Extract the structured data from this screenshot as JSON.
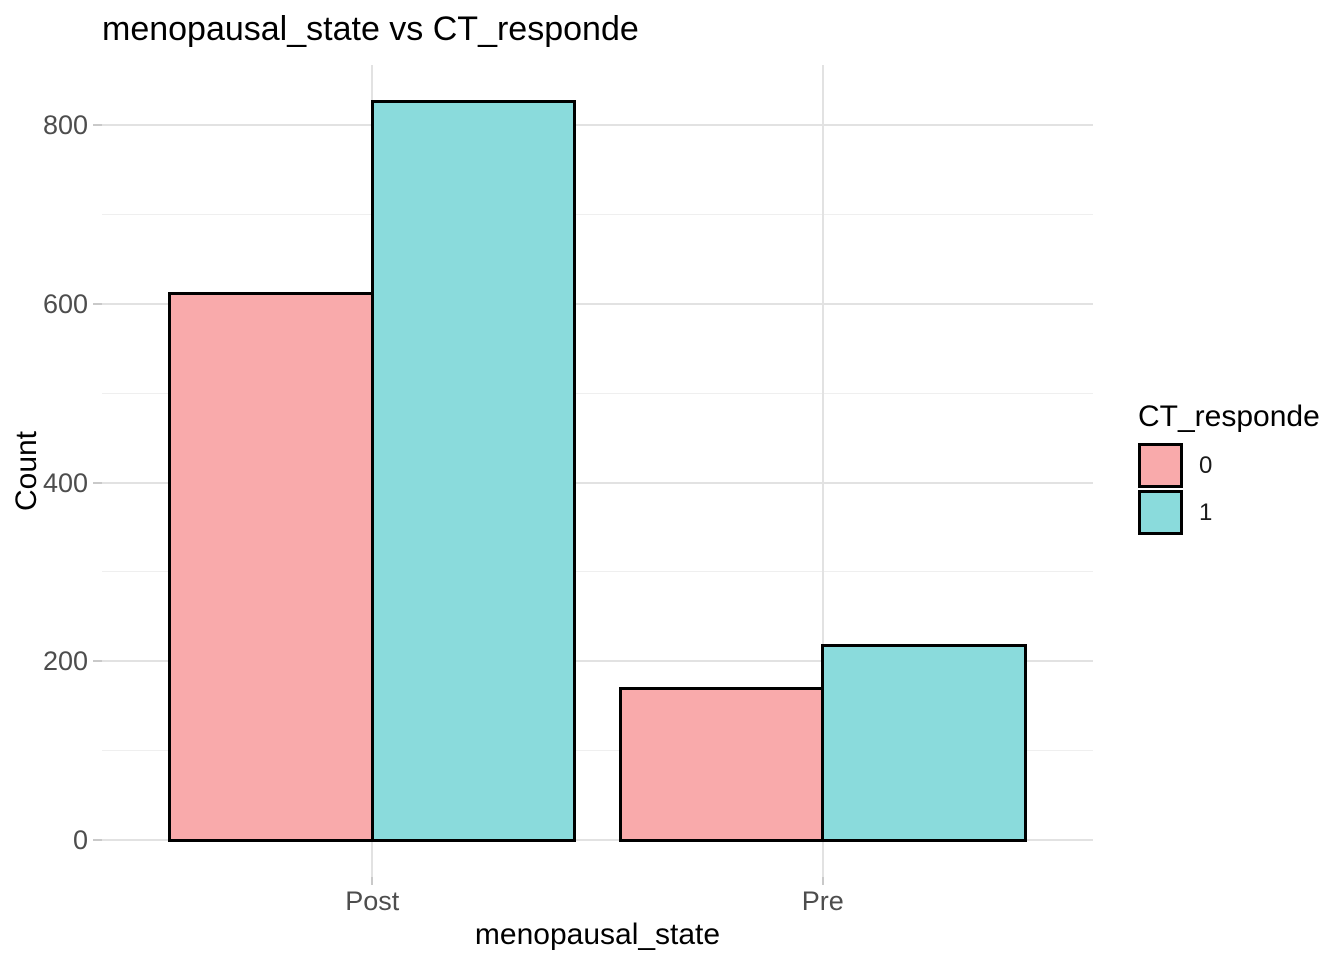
{
  "chart_data": {
    "type": "bar",
    "title": "menopausal_state vs CT_responde",
    "xlabel": "menopausal_state",
    "ylabel": "Count",
    "categories": [
      "Post",
      "Pre"
    ],
    "series": [
      {
        "name": "0",
        "color": "#f9aaab",
        "values": [
          612,
          170
        ]
      },
      {
        "name": "1",
        "color": "#8adbdc",
        "values": [
          826,
          218
        ]
      }
    ],
    "legend_title": "CT_responde",
    "legend_position": "right",
    "y_major_ticks": [
      0,
      200,
      400,
      600,
      800
    ],
    "y_minor_ticks": [
      100,
      300,
      500,
      700
    ],
    "ylim": [
      -41.3,
      867.3
    ],
    "grid": true,
    "bar_outline_color": "#000000"
  },
  "theme": {
    "background": "#ffffff",
    "major_grid_color": "#e2e2e2",
    "minor_grid_color": "#efefef",
    "axis_tick_color": "#c9c9c9",
    "tick_label_color": "#4d4d4d",
    "title_color": "#000000"
  }
}
